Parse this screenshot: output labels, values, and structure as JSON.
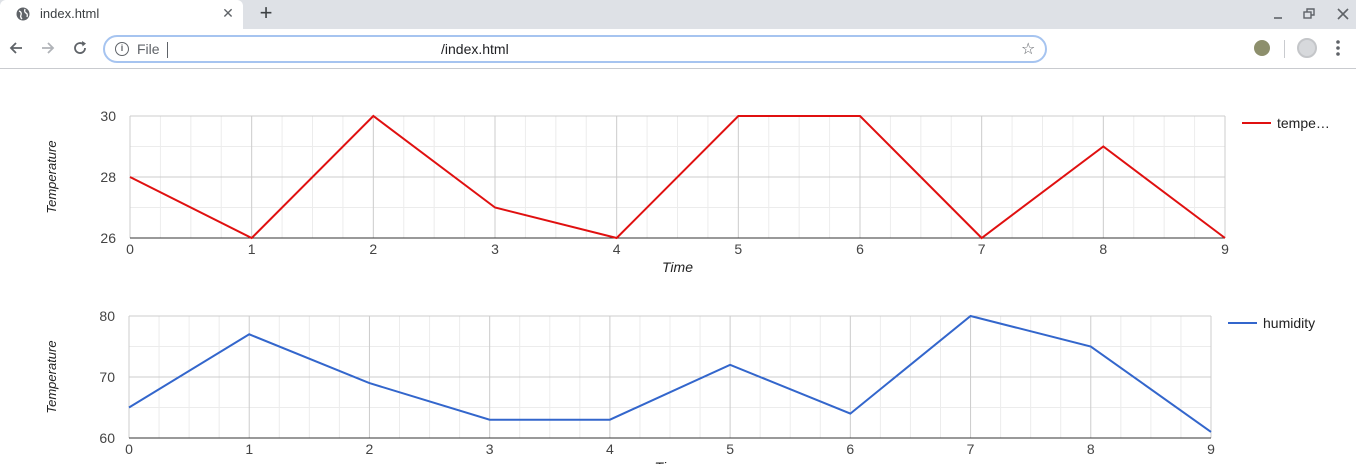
{
  "browser": {
    "tab_title": "index.html",
    "tab_close": "✕",
    "new_tab": "+",
    "scheme_label": "File",
    "url": "/index.html",
    "icons": {
      "favicon": "globe-icon",
      "back": "arrow-left-icon",
      "forward": "arrow-right-icon",
      "reload": "reload-icon",
      "info": "info-icon",
      "bookmark": "star-icon",
      "menu": "kebab-menu-icon"
    }
  },
  "chart_data": [
    {
      "type": "line",
      "x": [
        0,
        1,
        2,
        3,
        4,
        5,
        6,
        7,
        8,
        9
      ],
      "series": [
        {
          "name": "tempe…",
          "values": [
            28,
            26,
            30,
            27,
            26,
            30,
            30,
            26,
            29,
            26
          ],
          "color": "#e01010"
        }
      ],
      "xlabel": "Time",
      "ylabel": "Temperature",
      "yticks": [
        "26",
        "28",
        "30"
      ],
      "xticks": [
        "0",
        "1",
        "2",
        "3",
        "4",
        "5",
        "6",
        "7",
        "8",
        "9"
      ],
      "xlim": [
        0,
        9
      ],
      "ylim": [
        26,
        30
      ],
      "grid": true,
      "legend_position": "right"
    },
    {
      "type": "line",
      "x": [
        0,
        1,
        2,
        3,
        4,
        5,
        6,
        7,
        8,
        9
      ],
      "series": [
        {
          "name": "humidity",
          "values": [
            65,
            77,
            69,
            63,
            63,
            72,
            64,
            80,
            75,
            61
          ],
          "color": "#3366cc"
        }
      ],
      "xlabel": "Time",
      "ylabel": "Temperature",
      "yticks": [
        "60",
        "70",
        "80"
      ],
      "xticks": [
        "0",
        "1",
        "2",
        "3",
        "4",
        "5",
        "6",
        "7",
        "8",
        "9"
      ],
      "xlim": [
        0,
        9
      ],
      "ylim": [
        60,
        80
      ],
      "grid": true,
      "legend_position": "right"
    }
  ]
}
